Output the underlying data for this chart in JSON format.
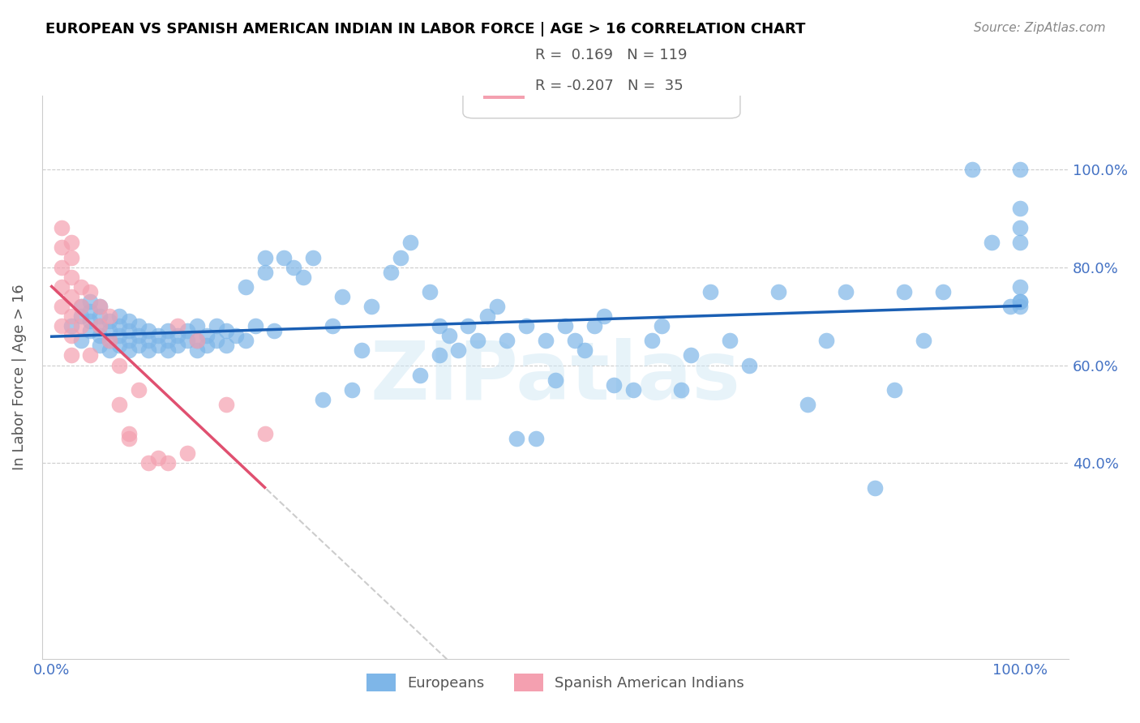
{
  "title": "EUROPEAN VS SPANISH AMERICAN INDIAN IN LABOR FORCE | AGE > 16 CORRELATION CHART",
  "source": "Source: ZipAtlas.com",
  "xlabel": "",
  "ylabel": "In Labor Force | Age > 16",
  "watermark": "ZIPatlas",
  "xlim": [
    0.0,
    1.0
  ],
  "ylim": [
    0.0,
    1.15
  ],
  "xticks": [
    0.0,
    0.2,
    0.4,
    0.6,
    0.8,
    1.0
  ],
  "xticklabels": [
    "0.0%",
    "",
    "",
    "",
    "",
    "100.0%"
  ],
  "yticks": [
    0.0,
    0.2,
    0.4,
    0.6,
    0.8,
    1.0,
    1.1
  ],
  "yticklabels_right": [
    "",
    "40.0%",
    "60.0%",
    "80.0%",
    "100.0%"
  ],
  "legend_r_blue": "0.169",
  "legend_n_blue": "119",
  "legend_r_pink": "-0.207",
  "legend_n_pink": "35",
  "blue_color": "#7EB6E8",
  "pink_color": "#F4A0B0",
  "trend_blue_color": "#1A5FB4",
  "trend_pink_color": "#E05070",
  "trend_gray_color": "#C0C0C0",
  "blue_scatter_x": [
    0.02,
    0.03,
    0.03,
    0.03,
    0.04,
    0.04,
    0.04,
    0.04,
    0.05,
    0.05,
    0.05,
    0.05,
    0.05,
    0.06,
    0.06,
    0.06,
    0.06,
    0.07,
    0.07,
    0.07,
    0.07,
    0.08,
    0.08,
    0.08,
    0.08,
    0.09,
    0.09,
    0.09,
    0.1,
    0.1,
    0.1,
    0.11,
    0.11,
    0.12,
    0.12,
    0.12,
    0.13,
    0.13,
    0.14,
    0.14,
    0.15,
    0.15,
    0.15,
    0.16,
    0.16,
    0.17,
    0.17,
    0.18,
    0.18,
    0.19,
    0.2,
    0.2,
    0.21,
    0.22,
    0.22,
    0.23,
    0.24,
    0.25,
    0.26,
    0.27,
    0.28,
    0.29,
    0.3,
    0.31,
    0.32,
    0.33,
    0.35,
    0.36,
    0.37,
    0.38,
    0.39,
    0.4,
    0.4,
    0.41,
    0.42,
    0.43,
    0.44,
    0.45,
    0.46,
    0.47,
    0.48,
    0.49,
    0.5,
    0.51,
    0.52,
    0.53,
    0.54,
    0.55,
    0.56,
    0.57,
    0.58,
    0.6,
    0.62,
    0.63,
    0.65,
    0.66,
    0.68,
    0.7,
    0.72,
    0.75,
    0.78,
    0.8,
    0.82,
    0.85,
    0.87,
    0.88,
    0.9,
    0.92,
    0.95,
    0.97,
    0.99,
    1.0,
    1.0,
    1.0,
    1.0,
    1.0,
    1.0,
    1.0,
    1.0
  ],
  "blue_scatter_y": [
    0.68,
    0.7,
    0.72,
    0.65,
    0.67,
    0.69,
    0.71,
    0.73,
    0.64,
    0.66,
    0.68,
    0.7,
    0.72,
    0.63,
    0.65,
    0.67,
    0.69,
    0.64,
    0.66,
    0.68,
    0.7,
    0.63,
    0.65,
    0.67,
    0.69,
    0.64,
    0.66,
    0.68,
    0.63,
    0.65,
    0.67,
    0.64,
    0.66,
    0.63,
    0.65,
    0.67,
    0.64,
    0.66,
    0.65,
    0.67,
    0.63,
    0.65,
    0.68,
    0.64,
    0.66,
    0.65,
    0.68,
    0.64,
    0.67,
    0.66,
    0.76,
    0.65,
    0.68,
    0.82,
    0.79,
    0.67,
    0.82,
    0.8,
    0.78,
    0.82,
    0.53,
    0.68,
    0.74,
    0.55,
    0.63,
    0.72,
    0.79,
    0.82,
    0.85,
    0.58,
    0.75,
    0.68,
    0.62,
    0.66,
    0.63,
    0.68,
    0.65,
    0.7,
    0.72,
    0.65,
    0.45,
    0.68,
    0.45,
    0.65,
    0.57,
    0.68,
    0.65,
    0.63,
    0.68,
    0.7,
    0.56,
    0.55,
    0.65,
    0.68,
    0.55,
    0.62,
    0.75,
    0.65,
    0.6,
    0.75,
    0.52,
    0.65,
    0.75,
    0.35,
    0.55,
    0.75,
    0.65,
    0.75,
    1.0,
    0.85,
    0.72,
    0.72,
    0.92,
    1.0,
    0.88,
    0.73,
    0.85,
    0.76,
    0.73
  ],
  "pink_scatter_x": [
    0.01,
    0.01,
    0.01,
    0.01,
    0.01,
    0.01,
    0.02,
    0.02,
    0.02,
    0.02,
    0.02,
    0.02,
    0.02,
    0.03,
    0.03,
    0.03,
    0.04,
    0.04,
    0.05,
    0.05,
    0.06,
    0.06,
    0.07,
    0.07,
    0.08,
    0.08,
    0.09,
    0.1,
    0.11,
    0.12,
    0.13,
    0.14,
    0.15,
    0.18,
    0.22
  ],
  "pink_scatter_y": [
    0.88,
    0.84,
    0.8,
    0.76,
    0.72,
    0.68,
    0.85,
    0.82,
    0.78,
    0.74,
    0.7,
    0.66,
    0.62,
    0.76,
    0.72,
    0.68,
    0.75,
    0.62,
    0.72,
    0.68,
    0.7,
    0.65,
    0.6,
    0.52,
    0.46,
    0.45,
    0.55,
    0.4,
    0.41,
    0.4,
    0.68,
    0.42,
    0.65,
    0.52,
    0.46
  ]
}
